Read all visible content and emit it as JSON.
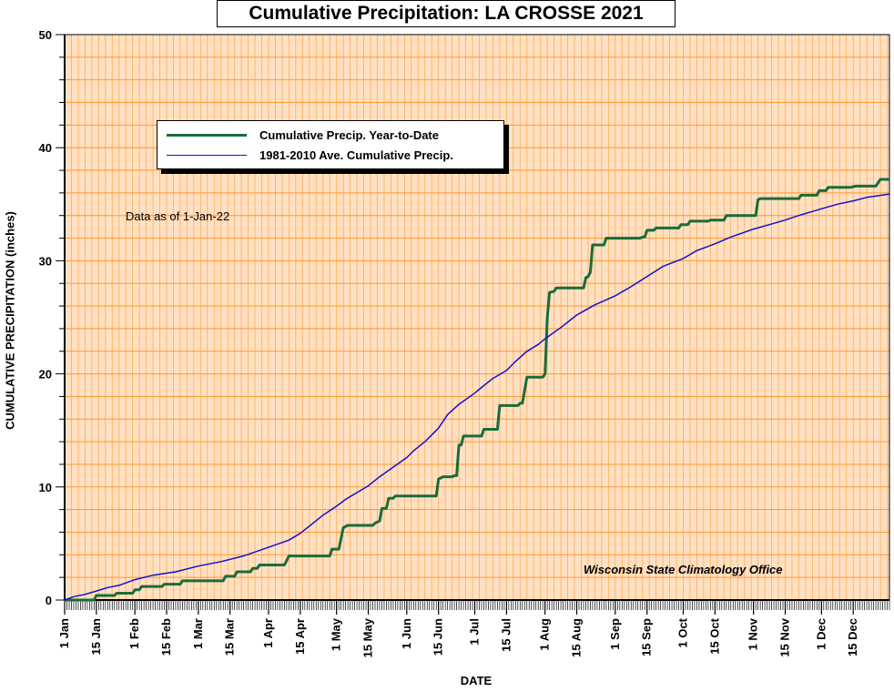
{
  "chart_data": {
    "type": "line",
    "title": "Cumulative Precipitation: LA CROSSE 2021",
    "xlabel": "DATE",
    "ylabel": "CUMULATIVE PRECIPITATION (inches)",
    "ylim": [
      0,
      50
    ],
    "xlim": [
      1,
      365
    ],
    "x_unit": "day of year 2021",
    "y_ticks": [
      0,
      10,
      20,
      30,
      40,
      50
    ],
    "x_ticks": [
      {
        "day": 1,
        "label": "1 Jan"
      },
      {
        "day": 15,
        "label": "15 Jan"
      },
      {
        "day": 32,
        "label": "1 Feb"
      },
      {
        "day": 46,
        "label": "15 Feb"
      },
      {
        "day": 60,
        "label": "1 Mar"
      },
      {
        "day": 74,
        "label": "15 Mar"
      },
      {
        "day": 91,
        "label": "1 Apr"
      },
      {
        "day": 105,
        "label": "15 Apr"
      },
      {
        "day": 121,
        "label": "1 May"
      },
      {
        "day": 135,
        "label": "15 May"
      },
      {
        "day": 152,
        "label": "1 Jun"
      },
      {
        "day": 166,
        "label": "15 Jun"
      },
      {
        "day": 182,
        "label": "1 Jul"
      },
      {
        "day": 196,
        "label": "15 Jul"
      },
      {
        "day": 213,
        "label": "1 Aug"
      },
      {
        "day": 227,
        "label": "15 Aug"
      },
      {
        "day": 244,
        "label": "1 Sep"
      },
      {
        "day": 258,
        "label": "15 Sep"
      },
      {
        "day": 274,
        "label": "1 Oct"
      },
      {
        "day": 288,
        "label": "15 Oct"
      },
      {
        "day": 305,
        "label": "1 Nov"
      },
      {
        "day": 319,
        "label": "15 Nov"
      },
      {
        "day": 335,
        "label": "1 Dec"
      },
      {
        "day": 349,
        "label": "15 Dec"
      }
    ],
    "grid": true,
    "legend_position": "top-left",
    "background_color": "#ffe0c2",
    "grid_color": "#ff9933",
    "series": [
      {
        "name": "Cumulative Precip. Year-to-Date",
        "color": "#1a6b3a",
        "step": true,
        "points": [
          [
            1,
            0
          ],
          [
            14,
            0
          ],
          [
            15,
            0.4
          ],
          [
            23,
            0.4
          ],
          [
            24,
            0.6
          ],
          [
            31,
            0.6
          ],
          [
            32,
            0.9
          ],
          [
            34,
            0.9
          ],
          [
            35,
            1.2
          ],
          [
            44,
            1.2
          ],
          [
            45,
            1.4
          ],
          [
            52,
            1.4
          ],
          [
            53,
            1.7
          ],
          [
            71,
            1.7
          ],
          [
            72,
            2.1
          ],
          [
            76,
            2.1
          ],
          [
            77,
            2.5
          ],
          [
            83,
            2.5
          ],
          [
            84,
            2.8
          ],
          [
            86,
            2.8
          ],
          [
            87,
            3.1
          ],
          [
            98,
            3.1
          ],
          [
            100,
            3.9
          ],
          [
            118,
            3.9
          ],
          [
            119,
            4.5
          ],
          [
            122,
            4.5
          ],
          [
            124,
            6.4
          ],
          [
            126,
            6.6
          ],
          [
            137,
            6.6
          ],
          [
            138,
            6.8
          ],
          [
            140,
            7.0
          ],
          [
            141,
            8.1
          ],
          [
            143,
            8.1
          ],
          [
            144,
            9.0
          ],
          [
            146,
            9.0
          ],
          [
            147,
            9.2
          ],
          [
            165,
            9.2
          ],
          [
            166,
            10.7
          ],
          [
            168,
            10.9
          ],
          [
            172,
            10.9
          ],
          [
            173,
            11.0
          ],
          [
            174,
            11.0
          ],
          [
            175,
            13.7
          ],
          [
            176,
            13.7
          ],
          [
            177,
            14.5
          ],
          [
            185,
            14.5
          ],
          [
            186,
            15.1
          ],
          [
            192,
            15.1
          ],
          [
            193,
            17.2
          ],
          [
            201,
            17.2
          ],
          [
            202,
            17.4
          ],
          [
            203,
            17.4
          ],
          [
            205,
            19.7
          ],
          [
            212,
            19.7
          ],
          [
            213,
            20.0
          ],
          [
            214,
            25.0
          ],
          [
            215,
            27.2
          ],
          [
            217,
            27.3
          ],
          [
            218,
            27.6
          ],
          [
            230,
            27.6
          ],
          [
            231,
            28.5
          ],
          [
            232,
            28.6
          ],
          [
            233,
            29.0
          ],
          [
            234,
            31.4
          ],
          [
            239,
            31.4
          ],
          [
            240,
            32.0
          ],
          [
            255,
            32.0
          ],
          [
            256,
            32.1
          ],
          [
            257,
            32.1
          ],
          [
            258,
            32.7
          ],
          [
            261,
            32.7
          ],
          [
            262,
            32.9
          ],
          [
            272,
            32.9
          ],
          [
            273,
            33.2
          ],
          [
            276,
            33.2
          ],
          [
            277,
            33.5
          ],
          [
            285,
            33.5
          ],
          [
            286,
            33.6
          ],
          [
            292,
            33.6
          ],
          [
            293,
            34.0
          ],
          [
            306,
            34.0
          ],
          [
            307,
            35.4
          ],
          [
            308,
            35.5
          ],
          [
            325,
            35.5
          ],
          [
            326,
            35.8
          ],
          [
            333,
            35.8
          ],
          [
            334,
            36.2
          ],
          [
            337,
            36.2
          ],
          [
            338,
            36.5
          ],
          [
            348,
            36.5
          ],
          [
            350,
            36.6
          ],
          [
            359,
            36.6
          ],
          [
            361,
            37.2
          ],
          [
            365,
            37.2
          ]
        ]
      },
      {
        "name": "1981-2010 Ave. Cumulative Precip.",
        "color": "#1010d0",
        "step": false,
        "points": [
          [
            1,
            0
          ],
          [
            5,
            0.3
          ],
          [
            10,
            0.5
          ],
          [
            15,
            0.8
          ],
          [
            20,
            1.1
          ],
          [
            25,
            1.3
          ],
          [
            32,
            1.8
          ],
          [
            40,
            2.2
          ],
          [
            50,
            2.5
          ],
          [
            60,
            3.0
          ],
          [
            70,
            3.4
          ],
          [
            80,
            3.9
          ],
          [
            90,
            4.6
          ],
          [
            100,
            5.3
          ],
          [
            105,
            5.9
          ],
          [
            110,
            6.7
          ],
          [
            115,
            7.5
          ],
          [
            121,
            8.3
          ],
          [
            125,
            8.9
          ],
          [
            130,
            9.5
          ],
          [
            135,
            10.1
          ],
          [
            140,
            10.9
          ],
          [
            145,
            11.6
          ],
          [
            152,
            12.6
          ],
          [
            155,
            13.2
          ],
          [
            160,
            14.0
          ],
          [
            166,
            15.2
          ],
          [
            170,
            16.4
          ],
          [
            175,
            17.3
          ],
          [
            182,
            18.3
          ],
          [
            185,
            18.8
          ],
          [
            190,
            19.6
          ],
          [
            196,
            20.3
          ],
          [
            200,
            21.1
          ],
          [
            205,
            22.0
          ],
          [
            210,
            22.6
          ],
          [
            213,
            23.1
          ],
          [
            220,
            24.1
          ],
          [
            227,
            25.2
          ],
          [
            235,
            26.1
          ],
          [
            244,
            26.9
          ],
          [
            250,
            27.6
          ],
          [
            258,
            28.6
          ],
          [
            265,
            29.5
          ],
          [
            274,
            30.2
          ],
          [
            280,
            30.9
          ],
          [
            288,
            31.5
          ],
          [
            295,
            32.1
          ],
          [
            305,
            32.8
          ],
          [
            312,
            33.2
          ],
          [
            319,
            33.6
          ],
          [
            325,
            34.0
          ],
          [
            335,
            34.6
          ],
          [
            342,
            35.0
          ],
          [
            349,
            35.3
          ],
          [
            355,
            35.6
          ],
          [
            365,
            35.9
          ]
        ]
      }
    ],
    "annotations": [
      "Data as of 1-Jan-22",
      "Wisconsin State Climatology Office"
    ]
  }
}
